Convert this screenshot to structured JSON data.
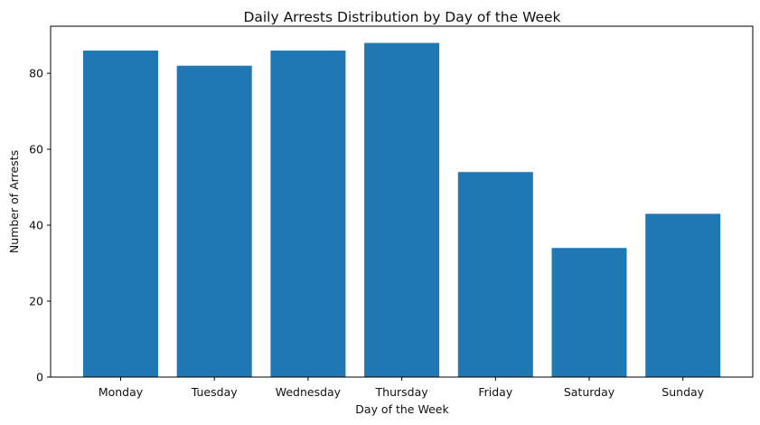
{
  "chart_data": {
    "type": "bar",
    "title": "Daily Arrests Distribution by Day of the Week",
    "xlabel": "Day of the Week",
    "ylabel": "Number of Arrests",
    "categories": [
      "Monday",
      "Tuesday",
      "Wednesday",
      "Thursday",
      "Friday",
      "Saturday",
      "Sunday"
    ],
    "values": [
      86,
      82,
      86,
      88,
      54,
      34,
      43
    ],
    "ylim": [
      0,
      92.4
    ],
    "yticks": [
      0,
      20,
      40,
      60,
      80
    ],
    "ytick_labels": [
      "0",
      "20",
      "40",
      "60",
      "80"
    ],
    "grid": false,
    "colors": {
      "bar": "#1f77b4",
      "axis": "#000000",
      "text": "#111111"
    }
  }
}
